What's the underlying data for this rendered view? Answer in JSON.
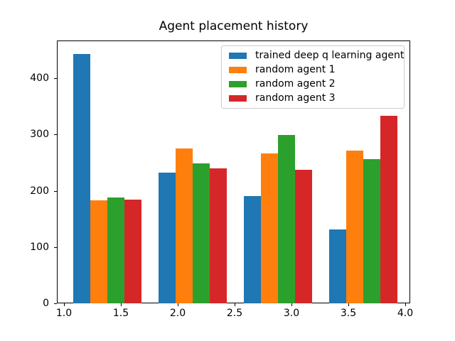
{
  "chart_data": {
    "type": "bar",
    "title": "Agent placement history",
    "xlabel": "",
    "ylabel": "",
    "grid": false,
    "legend_position": "upper right",
    "xlim": [
      0.9375,
      4.0425
    ],
    "ylim": [
      0,
      467
    ],
    "x_ticks": {
      "values": [
        1.0,
        1.5,
        2.0,
        2.5,
        3.0,
        3.5,
        4.0
      ],
      "labels": [
        "1.0",
        "1.5",
        "2.0",
        "2.5",
        "3.0",
        "3.5",
        "4.0"
      ]
    },
    "y_ticks": {
      "values": [
        0,
        100,
        200,
        300,
        400
      ],
      "labels": [
        "0",
        "100",
        "200",
        "300",
        "400"
      ]
    },
    "group_centers": [
      1.375,
      2.125,
      2.875,
      3.625
    ],
    "bar_width": 0.15,
    "series": [
      {
        "name": "trained deep q learning agent",
        "color": "#1f77b4",
        "values": [
          444,
          233,
          192,
          133
        ]
      },
      {
        "name": "random agent 1",
        "color": "#ff7f0e",
        "values": [
          184,
          277,
          268,
          273
        ]
      },
      {
        "name": "random agent 2",
        "color": "#2ca02c",
        "values": [
          190,
          250,
          301,
          258
        ]
      },
      {
        "name": "random agent 3",
        "color": "#d62728",
        "values": [
          185,
          241,
          238,
          335
        ]
      }
    ]
  }
}
